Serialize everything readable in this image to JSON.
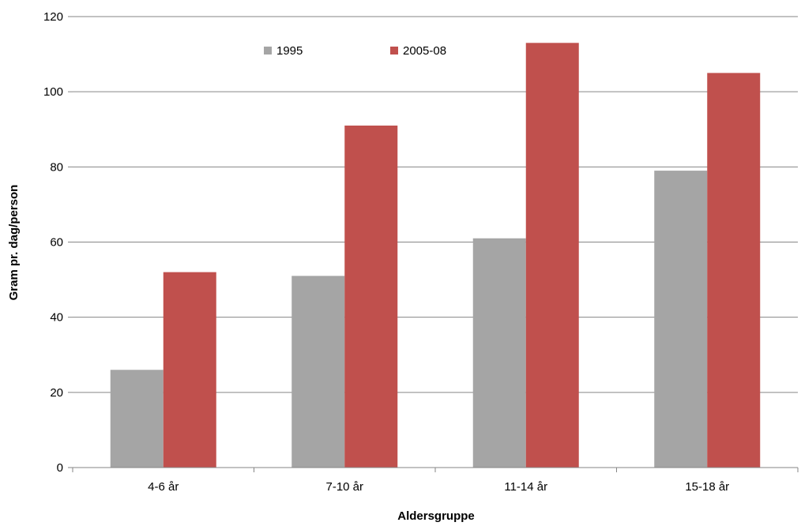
{
  "chart_data": {
    "type": "bar",
    "title": "",
    "xlabel": "Aldersgruppe",
    "ylabel": "Gram pr. dag/person",
    "categories": [
      "4-6 år",
      "7-10 år",
      "11-14 år",
      "15-18 år"
    ],
    "series": [
      {
        "name": "1995",
        "color": "#a5a5a5",
        "values": [
          26,
          51,
          61,
          79
        ]
      },
      {
        "name": "2005-08",
        "color": "#c0504d",
        "values": [
          52,
          91,
          113,
          105
        ]
      }
    ],
    "ylim": [
      0,
      120
    ],
    "yticks": [
      "0",
      "20",
      "40",
      "60",
      "80",
      "100",
      "120"
    ],
    "grid": true,
    "legend_position": "top-center"
  }
}
